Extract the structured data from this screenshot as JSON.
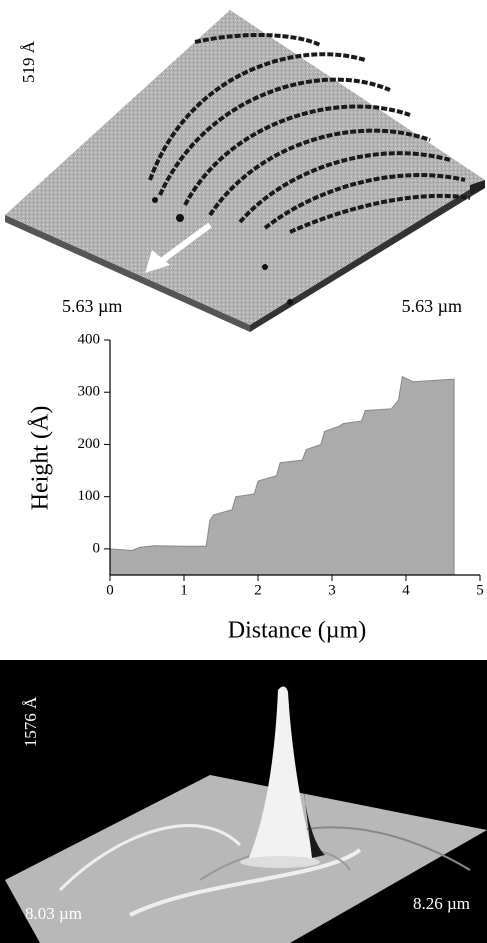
{
  "top_image": {
    "height_label": "519 Å",
    "left_size": "5.63 µm",
    "right_size": "5.63 µm"
  },
  "chart_data": {
    "type": "area",
    "x_label": "Distance (µm)",
    "y_label": "Height  (Å)",
    "color": "#ababab",
    "x": [
      0,
      0.3,
      0.4,
      0.6,
      1.0,
      1.3,
      1.35,
      1.4,
      1.65,
      1.7,
      1.95,
      2.0,
      2.25,
      2.3,
      2.6,
      2.65,
      2.85,
      2.9,
      3.1,
      3.15,
      3.4,
      3.45,
      3.8,
      3.9,
      3.95,
      4.1,
      4.65
    ],
    "values": [
      0,
      -3,
      3,
      6,
      5,
      5,
      55,
      65,
      75,
      100,
      105,
      130,
      140,
      165,
      170,
      190,
      200,
      225,
      235,
      240,
      245,
      265,
      268,
      285,
      330,
      320,
      325
    ],
    "xlim": [
      0,
      5
    ],
    "xticks": [
      0,
      1,
      2,
      3,
      4,
      5
    ],
    "ylim": [
      -50,
      400
    ],
    "yticks": [
      0,
      100,
      200,
      300,
      400
    ]
  },
  "bottom_image": {
    "height_label": "1576 Å",
    "left_size": "8.03 µm",
    "right_size": "8.26 µm"
  }
}
